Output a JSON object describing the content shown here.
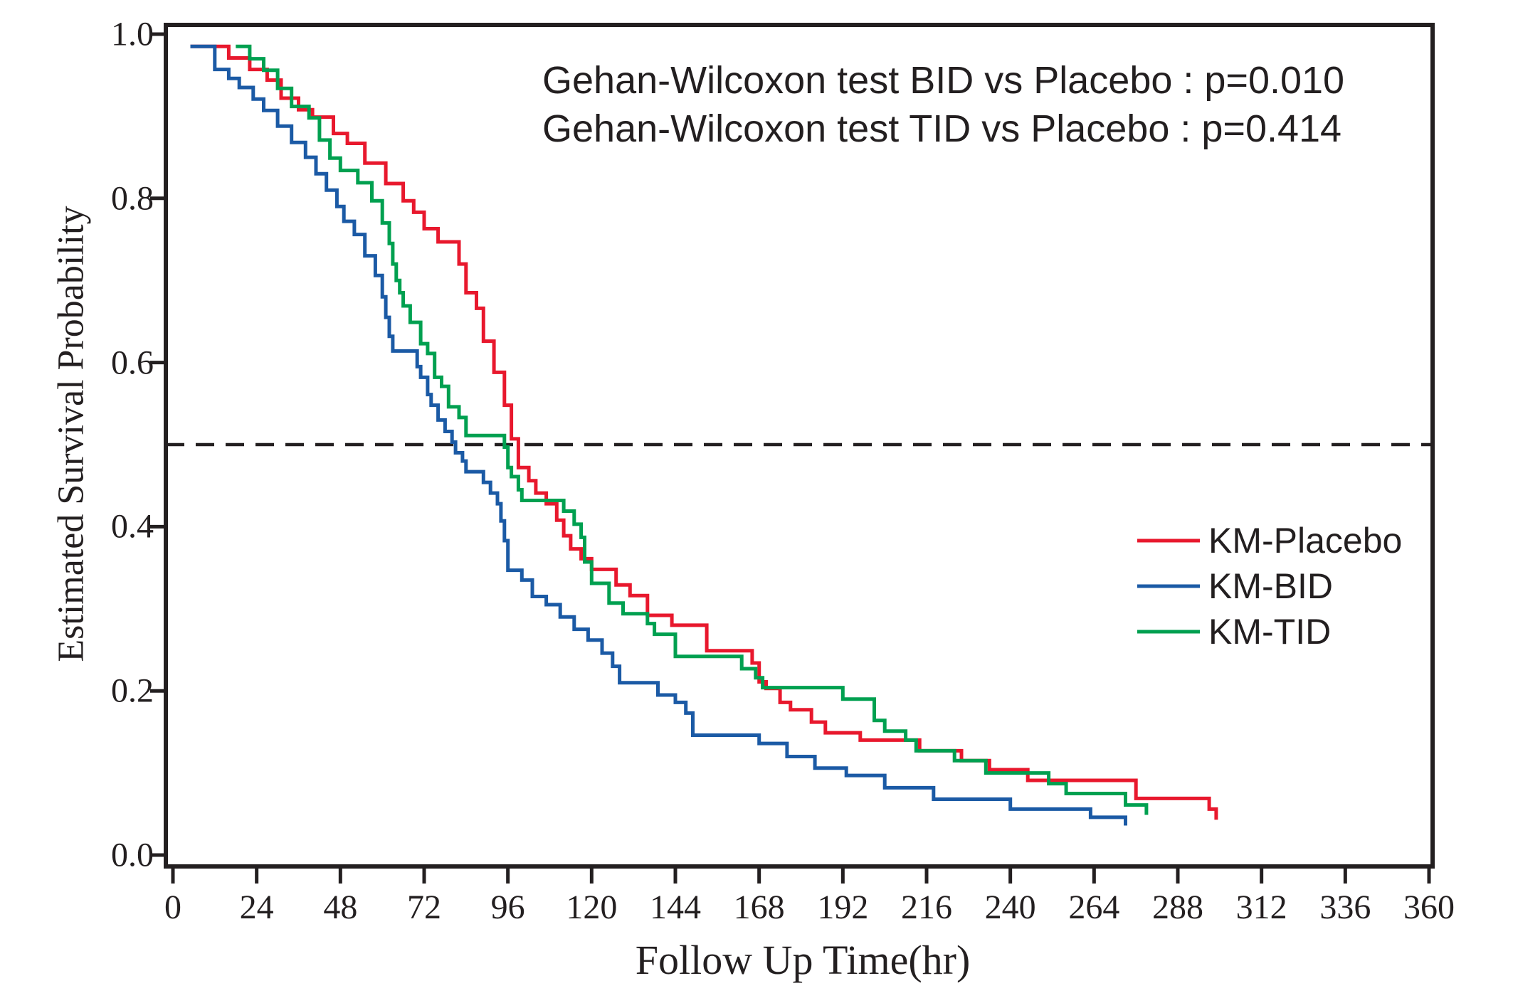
{
  "figure": {
    "background": "#ffffff",
    "text_color": "#231f20",
    "axis_color": "#231f20"
  },
  "chart_data": {
    "type": "line",
    "subtype": "kaplan-meier-step",
    "title": "",
    "xlabel": "Follow Up Time(hr)",
    "ylabel": "Estimated Survival Probability",
    "xlim": [
      0,
      360
    ],
    "ylim": [
      0.0,
      1.0
    ],
    "grid": false,
    "xticks": [
      0,
      24,
      48,
      72,
      96,
      120,
      144,
      168,
      192,
      216,
      240,
      264,
      288,
      312,
      336,
      360
    ],
    "ytick_labels": [
      "0.0",
      "0.2",
      "0.4",
      "0.6",
      "0.8",
      "1.0"
    ],
    "annotations": [
      "Gehan-Wilcoxon test BID vs Placebo : p=0.010",
      "Gehan-Wilcoxon test TID vs Placebo : p=0.414"
    ],
    "reference_line": {
      "y": 0.5,
      "style": "dashed",
      "color": "#231f20"
    },
    "legend": {
      "position": "right-middle",
      "entries": [
        "KM-Placebo",
        "KM-BID",
        "KM-TID"
      ]
    },
    "series": [
      {
        "name": "KM-Placebo",
        "color": "#e8182d",
        "points": [
          [
            5,
            0.985
          ],
          [
            16,
            0.971
          ],
          [
            22,
            0.957
          ],
          [
            27,
            0.944
          ],
          [
            31,
            0.922
          ],
          [
            36,
            0.908
          ],
          [
            40,
            0.899
          ],
          [
            46,
            0.879
          ],
          [
            50,
            0.867
          ],
          [
            55,
            0.843
          ],
          [
            61,
            0.818
          ],
          [
            66,
            0.797
          ],
          [
            69,
            0.783
          ],
          [
            72,
            0.763
          ],
          [
            76,
            0.747
          ],
          [
            82,
            0.72
          ],
          [
            84,
            0.685
          ],
          [
            87,
            0.666
          ],
          [
            89,
            0.626
          ],
          [
            92,
            0.588
          ],
          [
            95,
            0.548
          ],
          [
            97,
            0.507
          ],
          [
            99,
            0.472
          ],
          [
            102,
            0.456
          ],
          [
            104,
            0.441
          ],
          [
            107,
            0.428
          ],
          [
            110,
            0.408
          ],
          [
            112,
            0.389
          ],
          [
            114,
            0.373
          ],
          [
            117,
            0.361
          ],
          [
            120,
            0.348
          ],
          [
            127,
            0.329
          ],
          [
            131,
            0.316
          ],
          [
            136,
            0.292
          ],
          [
            143,
            0.28
          ],
          [
            153,
            0.249
          ],
          [
            166,
            0.234
          ],
          [
            168,
            0.211
          ],
          [
            170,
            0.203
          ],
          [
            174,
            0.186
          ],
          [
            177,
            0.177
          ],
          [
            183,
            0.162
          ],
          [
            187,
            0.149
          ],
          [
            197,
            0.14
          ],
          [
            214,
            0.127
          ],
          [
            226,
            0.115
          ],
          [
            234,
            0.104
          ],
          [
            245,
            0.091
          ],
          [
            276,
            0.069
          ],
          [
            297,
            0.056
          ],
          [
            299,
            0.043
          ]
        ]
      },
      {
        "name": "KM-BID",
        "color": "#1b5aa5",
        "points": [
          [
            5,
            0.985
          ],
          [
            12,
            0.957
          ],
          [
            16,
            0.946
          ],
          [
            19,
            0.935
          ],
          [
            23,
            0.921
          ],
          [
            26,
            0.907
          ],
          [
            30,
            0.888
          ],
          [
            34,
            0.868
          ],
          [
            38,
            0.85
          ],
          [
            41,
            0.83
          ],
          [
            44,
            0.81
          ],
          [
            47,
            0.79
          ],
          [
            49,
            0.772
          ],
          [
            52,
            0.756
          ],
          [
            55,
            0.73
          ],
          [
            58,
            0.706
          ],
          [
            60,
            0.68
          ],
          [
            61,
            0.655
          ],
          [
            62,
            0.632
          ],
          [
            63,
            0.614
          ],
          [
            70,
            0.595
          ],
          [
            71,
            0.582
          ],
          [
            73,
            0.561
          ],
          [
            74,
            0.548
          ],
          [
            76,
            0.53
          ],
          [
            78,
            0.516
          ],
          [
            80,
            0.503
          ],
          [
            81,
            0.49
          ],
          [
            83,
            0.48
          ],
          [
            84,
            0.467
          ],
          [
            89,
            0.454
          ],
          [
            91,
            0.441
          ],
          [
            93,
            0.428
          ],
          [
            94,
            0.407
          ],
          [
            95,
            0.383
          ],
          [
            96,
            0.347
          ],
          [
            100,
            0.335
          ],
          [
            103,
            0.315
          ],
          [
            107,
            0.305
          ],
          [
            111,
            0.29
          ],
          [
            115,
            0.275
          ],
          [
            119,
            0.262
          ],
          [
            123,
            0.246
          ],
          [
            126,
            0.23
          ],
          [
            128,
            0.21
          ],
          [
            139,
            0.195
          ],
          [
            144,
            0.186
          ],
          [
            147,
            0.173
          ],
          [
            149,
            0.146
          ],
          [
            168,
            0.136
          ],
          [
            176,
            0.12
          ],
          [
            184,
            0.106
          ],
          [
            193,
            0.097
          ],
          [
            204,
            0.082
          ],
          [
            218,
            0.068
          ],
          [
            240,
            0.056
          ],
          [
            263,
            0.046
          ],
          [
            273,
            0.036
          ]
        ]
      },
      {
        "name": "KM-TID",
        "color": "#00a050",
        "points": [
          [
            18,
            0.985
          ],
          [
            22,
            0.97
          ],
          [
            26,
            0.956
          ],
          [
            30,
            0.934
          ],
          [
            34,
            0.912
          ],
          [
            39,
            0.898
          ],
          [
            42,
            0.871
          ],
          [
            45,
            0.849
          ],
          [
            48,
            0.834
          ],
          [
            53,
            0.819
          ],
          [
            57,
            0.797
          ],
          [
            60,
            0.77
          ],
          [
            62,
            0.745
          ],
          [
            63,
            0.72
          ],
          [
            64,
            0.7
          ],
          [
            65,
            0.685
          ],
          [
            66,
            0.669
          ],
          [
            68,
            0.649
          ],
          [
            71,
            0.623
          ],
          [
            73,
            0.611
          ],
          [
            75,
            0.582
          ],
          [
            77,
            0.571
          ],
          [
            79,
            0.546
          ],
          [
            82,
            0.533
          ],
          [
            84,
            0.511
          ],
          [
            95,
            0.497
          ],
          [
            96,
            0.472
          ],
          [
            97,
            0.461
          ],
          [
            99,
            0.445
          ],
          [
            100,
            0.432
          ],
          [
            112,
            0.419
          ],
          [
            115,
            0.403
          ],
          [
            117,
            0.387
          ],
          [
            118,
            0.357
          ],
          [
            120,
            0.331
          ],
          [
            125,
            0.307
          ],
          [
            129,
            0.294
          ],
          [
            136,
            0.282
          ],
          [
            138,
            0.269
          ],
          [
            144,
            0.242
          ],
          [
            163,
            0.227
          ],
          [
            167,
            0.216
          ],
          [
            169,
            0.204
          ],
          [
            192,
            0.19
          ],
          [
            201,
            0.164
          ],
          [
            204,
            0.151
          ],
          [
            210,
            0.14
          ],
          [
            213,
            0.127
          ],
          [
            224,
            0.115
          ],
          [
            233,
            0.1
          ],
          [
            251,
            0.087
          ],
          [
            256,
            0.075
          ],
          [
            273,
            0.061
          ],
          [
            279,
            0.049
          ]
        ]
      }
    ]
  }
}
